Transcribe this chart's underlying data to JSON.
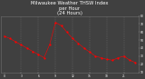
{
  "title": "Milwaukee Weather THSW Index\nper Hour\n(24 Hours)",
  "title_fontsize": 3.8,
  "background_color": "#404040",
  "plot_bg_color": "#404040",
  "text_color": "#ffffff",
  "grid_color": "#707070",
  "hours": [
    0,
    1,
    2,
    3,
    4,
    5,
    6,
    7,
    8,
    9,
    10,
    11,
    12,
    13,
    14,
    15,
    16,
    17,
    18,
    19,
    20,
    21,
    22,
    23
  ],
  "thsw_values": [
    55,
    52,
    48,
    44,
    40,
    36,
    32,
    28,
    45,
    72,
    68,
    60,
    52,
    46,
    40,
    35,
    30,
    28,
    26,
    25,
    28,
    30,
    25,
    22
  ],
  "scatter_color": "#ff0000",
  "line_color": "#ff0000",
  "marker_size": 2.5,
  "ylim": [
    10,
    80
  ],
  "yticks": [
    10,
    20,
    30,
    40,
    50,
    60,
    70,
    80
  ],
  "ytick_labels": [
    "10",
    "20",
    "30",
    "40",
    "50",
    "60",
    "70",
    "80"
  ],
  "xlim": [
    -0.5,
    23.5
  ],
  "xtick_positions": [
    0,
    3,
    6,
    9,
    12,
    15,
    18,
    21
  ],
  "xtick_labels": [
    "0",
    "3",
    "6",
    "9",
    "12",
    "15",
    "18",
    "21"
  ],
  "dashed_grid_hours": [
    3,
    6,
    9,
    12,
    15,
    18,
    21
  ]
}
